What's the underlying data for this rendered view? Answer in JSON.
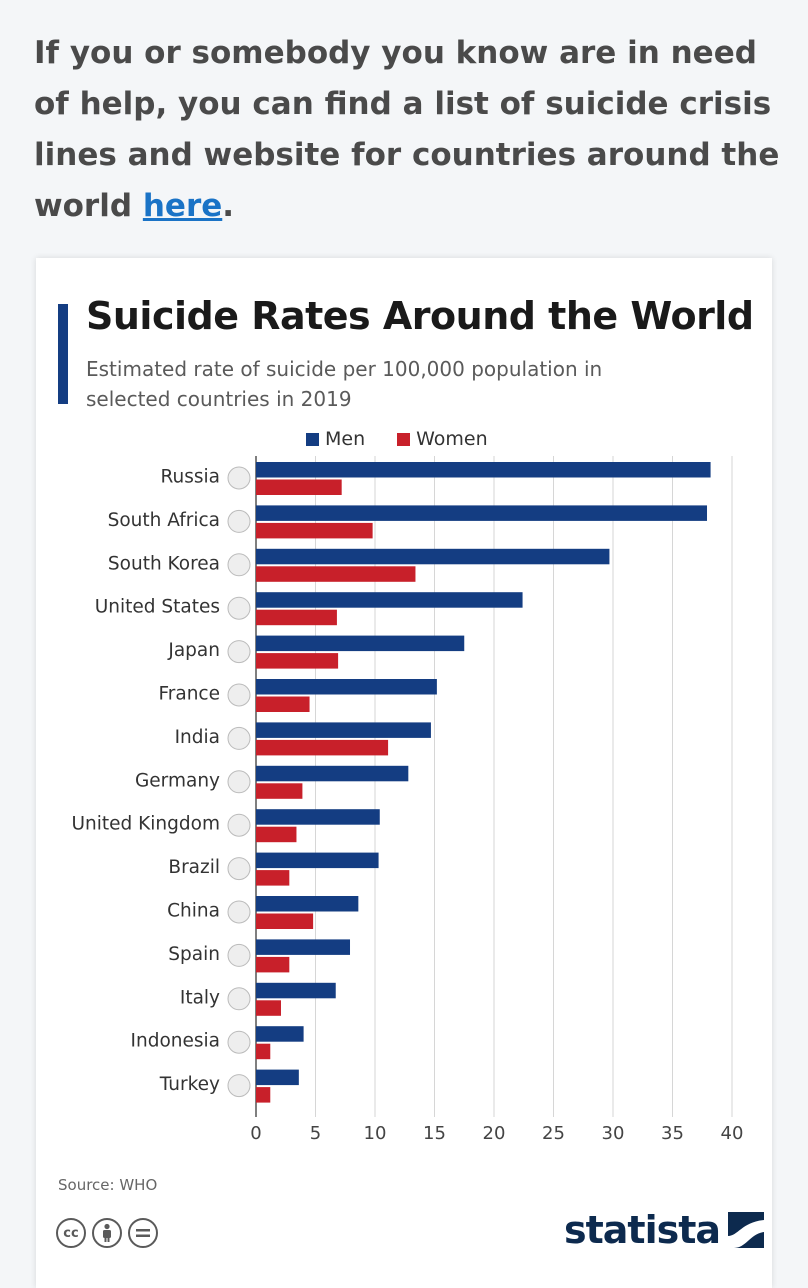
{
  "intro": {
    "text": "If you or somebody you know are in need of help, you can find a list of suicide crisis lines and website for countries around the world ",
    "link_text": "here",
    "trailing": "."
  },
  "colors": {
    "men": "#143d82",
    "women": "#c8202a",
    "accent": "#143d82"
  },
  "footer": {
    "source": "Source: WHO",
    "brand": "statista",
    "license_icons": [
      "cc-icon",
      "attribution-icon",
      "no-derivatives-icon"
    ]
  },
  "chart_data": {
    "type": "bar",
    "orientation": "horizontal",
    "title": "Suicide Rates Around the World",
    "subtitle": "Estimated rate of suicide per 100,000 population in selected countries in 2019",
    "categories": [
      "Russia",
      "South Africa",
      "South Korea",
      "United States",
      "Japan",
      "France",
      "India",
      "Germany",
      "United Kingdom",
      "Brazil",
      "China",
      "Spain",
      "Italy",
      "Indonesia",
      "Turkey"
    ],
    "flag_icons": [
      "russia-flag-icon",
      "south-africa-flag-icon",
      "south-korea-flag-icon",
      "united-states-flag-icon",
      "japan-flag-icon",
      "france-flag-icon",
      "india-flag-icon",
      "germany-flag-icon",
      "united-kingdom-flag-icon",
      "brazil-flag-icon",
      "china-flag-icon",
      "spain-flag-icon",
      "italy-flag-icon",
      "indonesia-flag-icon",
      "turkey-flag-icon"
    ],
    "series": [
      {
        "name": "Men",
        "values": [
          38.2,
          37.9,
          29.7,
          22.4,
          17.5,
          15.2,
          14.7,
          12.8,
          10.4,
          10.3,
          8.6,
          7.9,
          6.7,
          4.0,
          3.6
        ]
      },
      {
        "name": "Women",
        "values": [
          7.2,
          9.8,
          13.4,
          6.8,
          6.9,
          4.5,
          11.1,
          3.9,
          3.4,
          2.8,
          4.8,
          2.8,
          2.1,
          1.2,
          1.2
        ]
      }
    ],
    "xticks": [
      0,
      5,
      10,
      15,
      20,
      25,
      30,
      35,
      40
    ],
    "xlim": [
      0,
      40
    ],
    "grid": true,
    "legend": "top"
  }
}
